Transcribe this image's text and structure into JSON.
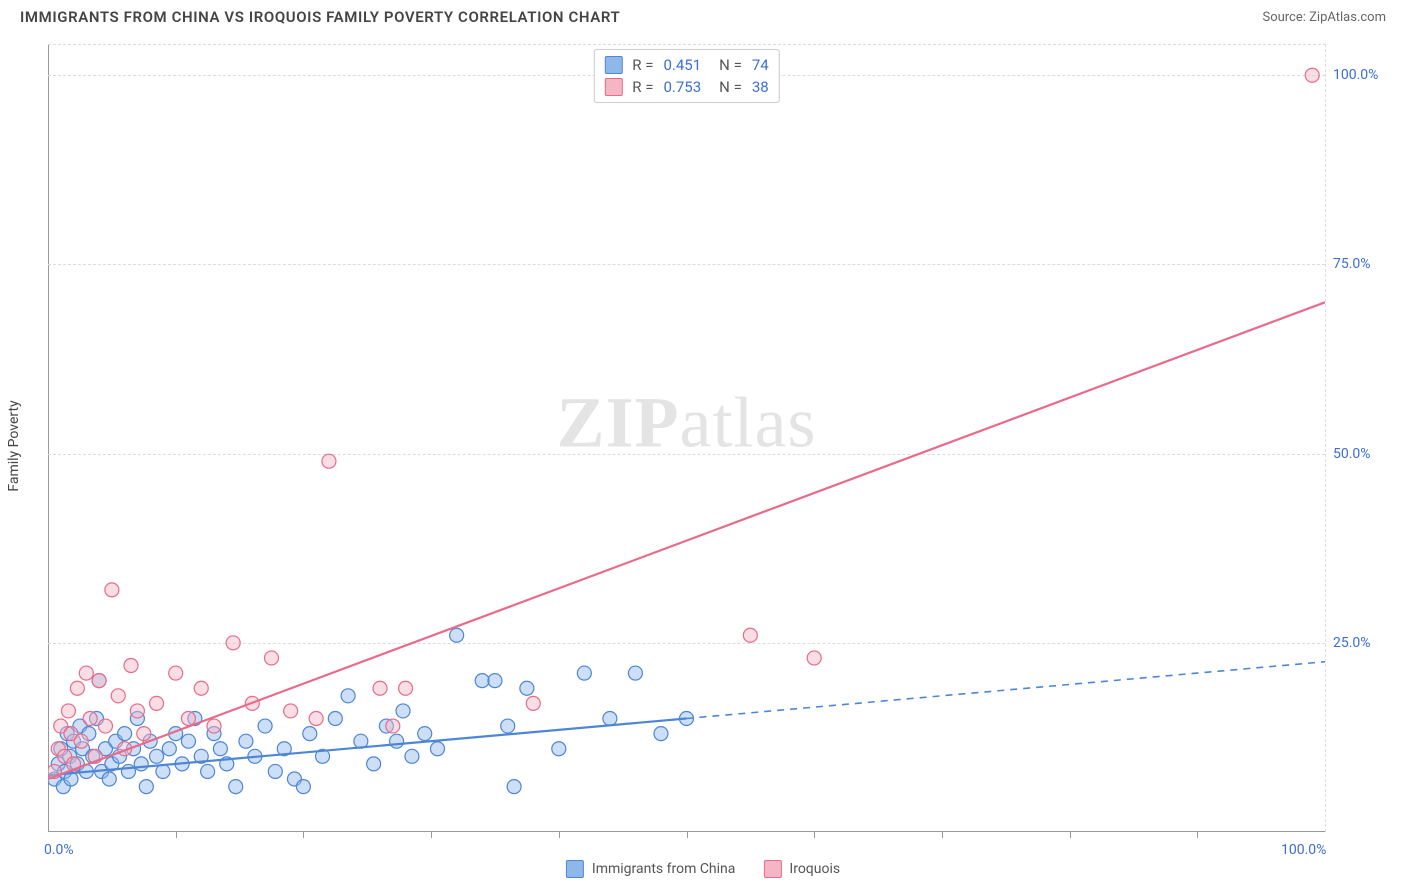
{
  "title": "IMMIGRANTS FROM CHINA VS IROQUOIS FAMILY POVERTY CORRELATION CHART",
  "source": "Source: ZipAtlas.com",
  "ylabel": "Family Poverty",
  "watermark_a": "ZIP",
  "watermark_b": "atlas",
  "xdomain": [
    0,
    100
  ],
  "ydomain": [
    0,
    104
  ],
  "yticks": [
    {
      "v": 25,
      "label": "25.0%"
    },
    {
      "v": 50,
      "label": "50.0%"
    },
    {
      "v": 75,
      "label": "75.0%"
    },
    {
      "v": 100,
      "label": "100.0%"
    }
  ],
  "xticks": [
    {
      "v": 0,
      "label": "0.0%"
    },
    {
      "v": 100,
      "label": "100.0%"
    }
  ],
  "xtick_marks": [
    10,
    20,
    30,
    40,
    50,
    60,
    70,
    80,
    90
  ],
  "series": [
    {
      "name": "Immigrants from China",
      "color_fill": "#8fb8ea",
      "color_stroke": "#4e86d6",
      "r_value": "0.451",
      "n_value": "74",
      "marker_radius": 7,
      "trend_solid": {
        "x1": 0,
        "y1": 7.5,
        "x2": 50,
        "y2": 15
      },
      "trend_dash": {
        "x1": 50,
        "y1": 15,
        "x2": 100,
        "y2": 22.5
      },
      "points": [
        [
          0.5,
          7
        ],
        [
          0.8,
          9
        ],
        [
          1.0,
          11
        ],
        [
          1.2,
          6
        ],
        [
          1.3,
          8
        ],
        [
          1.5,
          13
        ],
        [
          1.7,
          10
        ],
        [
          1.8,
          7
        ],
        [
          2.0,
          12
        ],
        [
          2.3,
          9
        ],
        [
          2.5,
          14
        ],
        [
          2.7,
          11
        ],
        [
          3.0,
          8
        ],
        [
          3.2,
          13
        ],
        [
          3.5,
          10
        ],
        [
          3.8,
          15
        ],
        [
          4.0,
          20
        ],
        [
          4.2,
          8
        ],
        [
          4.5,
          11
        ],
        [
          4.8,
          7
        ],
        [
          5.0,
          9
        ],
        [
          5.3,
          12
        ],
        [
          5.6,
          10
        ],
        [
          6.0,
          13
        ],
        [
          6.3,
          8
        ],
        [
          6.7,
          11
        ],
        [
          7.0,
          15
        ],
        [
          7.3,
          9
        ],
        [
          7.7,
          6
        ],
        [
          8.0,
          12
        ],
        [
          8.5,
          10
        ],
        [
          9.0,
          8
        ],
        [
          9.5,
          11
        ],
        [
          10.0,
          13
        ],
        [
          10.5,
          9
        ],
        [
          11.0,
          12
        ],
        [
          11.5,
          15
        ],
        [
          12.0,
          10
        ],
        [
          12.5,
          8
        ],
        [
          13.0,
          13
        ],
        [
          13.5,
          11
        ],
        [
          14.0,
          9
        ],
        [
          14.7,
          6
        ],
        [
          15.5,
          12
        ],
        [
          16.2,
          10
        ],
        [
          17.0,
          14
        ],
        [
          17.8,
          8
        ],
        [
          18.5,
          11
        ],
        [
          19.3,
          7
        ],
        [
          20.0,
          6
        ],
        [
          20.5,
          13
        ],
        [
          21.5,
          10
        ],
        [
          22.5,
          15
        ],
        [
          23.5,
          18
        ],
        [
          24.5,
          12
        ],
        [
          25.5,
          9
        ],
        [
          26.5,
          14
        ],
        [
          27.3,
          12
        ],
        [
          27.8,
          16
        ],
        [
          28.5,
          10
        ],
        [
          29.5,
          13
        ],
        [
          30.5,
          11
        ],
        [
          32.0,
          26
        ],
        [
          34.0,
          20
        ],
        [
          35.0,
          20
        ],
        [
          36.0,
          14
        ],
        [
          37.5,
          19
        ],
        [
          36.5,
          6
        ],
        [
          40.0,
          11
        ],
        [
          42.0,
          21
        ],
        [
          44.0,
          15
        ],
        [
          46.0,
          21
        ],
        [
          48.0,
          13
        ],
        [
          50.0,
          15
        ]
      ]
    },
    {
      "name": "Iroquois",
      "color_fill": "#f4b6c5",
      "color_stroke": "#e86b8b",
      "r_value": "0.753",
      "n_value": "38",
      "marker_radius": 7,
      "trend_solid": {
        "x1": 0,
        "y1": 7,
        "x2": 100,
        "y2": 70
      },
      "trend_dash": null,
      "points": [
        [
          0.5,
          8
        ],
        [
          0.8,
          11
        ],
        [
          1.0,
          14
        ],
        [
          1.3,
          10
        ],
        [
          1.6,
          16
        ],
        [
          1.8,
          13
        ],
        [
          2.0,
          9
        ],
        [
          2.3,
          19
        ],
        [
          2.6,
          12
        ],
        [
          3.0,
          21
        ],
        [
          3.3,
          15
        ],
        [
          3.7,
          10
        ],
        [
          4.0,
          20
        ],
        [
          4.5,
          14
        ],
        [
          5.0,
          32
        ],
        [
          5.5,
          18
        ],
        [
          6.0,
          11
        ],
        [
          6.5,
          22
        ],
        [
          7.0,
          16
        ],
        [
          7.5,
          13
        ],
        [
          8.5,
          17
        ],
        [
          10.0,
          21
        ],
        [
          11.0,
          15
        ],
        [
          12.0,
          19
        ],
        [
          13.0,
          14
        ],
        [
          14.5,
          25
        ],
        [
          16.0,
          17
        ],
        [
          17.5,
          23
        ],
        [
          19.0,
          16
        ],
        [
          21.0,
          15
        ],
        [
          22.0,
          49
        ],
        [
          26.0,
          19
        ],
        [
          27.0,
          14
        ],
        [
          28.0,
          19
        ],
        [
          38.0,
          17
        ],
        [
          55.0,
          26
        ],
        [
          60.0,
          23
        ],
        [
          99.0,
          100
        ]
      ]
    }
  ],
  "legend_bottom": [
    {
      "label": "Immigrants from China",
      "fill": "#8fb8ea",
      "stroke": "#4e86d6"
    },
    {
      "label": "Iroquois",
      "fill": "#f4b6c5",
      "stroke": "#e86b8b"
    }
  ]
}
